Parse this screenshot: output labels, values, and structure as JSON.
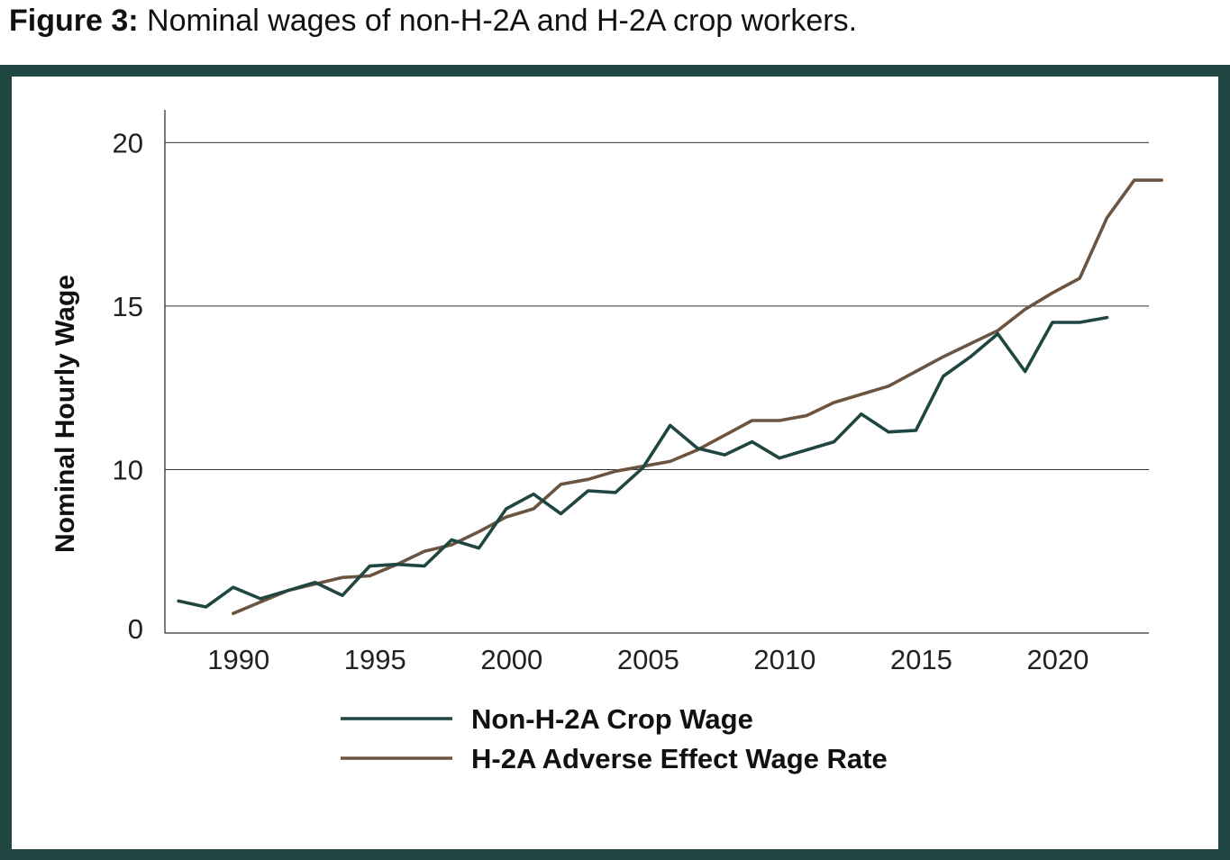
{
  "figure_title": {
    "label": "Figure 3:",
    "text": "Nominal wages of non-H-2A and H-2A crop workers."
  },
  "colors": {
    "frame": "#1f4641",
    "non_h2a": "#1f4641",
    "h2a": "#6b5540"
  },
  "chart_data": {
    "type": "line",
    "title": "",
    "xlabel": "",
    "ylabel": "Nominal Hourly Wage",
    "xlim": [
      1987.5,
      2023.5
    ],
    "ylim": [
      5,
      21
    ],
    "y_axis_bottom_label": "0",
    "xticks": [
      1990,
      1995,
      2000,
      2005,
      2010,
      2015,
      2020
    ],
    "yticks": [
      10,
      15,
      20
    ],
    "grid": "horizontal",
    "legend_position": "bottom-center",
    "series": [
      {
        "name": "Non-H-2A Crop Wage",
        "color": "#1f4641",
        "x": [
          1988,
          1989,
          1990,
          1991,
          1992,
          1993,
          1994,
          1995,
          1996,
          1997,
          1998,
          1999,
          2000,
          2001,
          2002,
          2003,
          2004,
          2005,
          2006,
          2007,
          2008,
          2009,
          2010,
          2011,
          2012,
          2013,
          2014,
          2015,
          2016,
          2017,
          2018,
          2019,
          2020,
          2021,
          2022
        ],
        "values": [
          5.98,
          5.8,
          6.4,
          6.05,
          6.3,
          6.55,
          6.15,
          7.05,
          7.1,
          7.05,
          7.85,
          7.6,
          8.8,
          9.25,
          8.65,
          9.35,
          9.3,
          10.05,
          11.35,
          10.65,
          10.45,
          10.85,
          10.35,
          10.6,
          10.85,
          11.7,
          11.15,
          11.2,
          12.85,
          13.45,
          14.15,
          13.0,
          14.5,
          14.5,
          14.65
        ]
      },
      {
        "name": "H-2A Adverse Effect Wage Rate",
        "color": "#6b5540",
        "x": [
          1990,
          1991,
          1992,
          1993,
          1994,
          1995,
          1996,
          1997,
          1998,
          1999,
          2000,
          2001,
          2002,
          2003,
          2004,
          2005,
          2006,
          2007,
          2008,
          2009,
          2010,
          2011,
          2012,
          2013,
          2014,
          2015,
          2016,
          2017,
          2018,
          2019,
          2020,
          2021,
          2022,
          2023,
          2024
        ],
        "values": [
          5.6,
          5.95,
          6.3,
          6.5,
          6.7,
          6.75,
          7.1,
          7.5,
          7.7,
          8.1,
          8.55,
          8.8,
          9.55,
          9.7,
          9.95,
          10.1,
          10.25,
          10.6,
          11.05,
          11.5,
          11.5,
          11.65,
          12.05,
          12.3,
          12.55,
          13.0,
          13.45,
          13.85,
          14.25,
          14.9,
          15.4,
          15.85,
          17.7,
          18.85,
          18.85
        ]
      }
    ]
  }
}
